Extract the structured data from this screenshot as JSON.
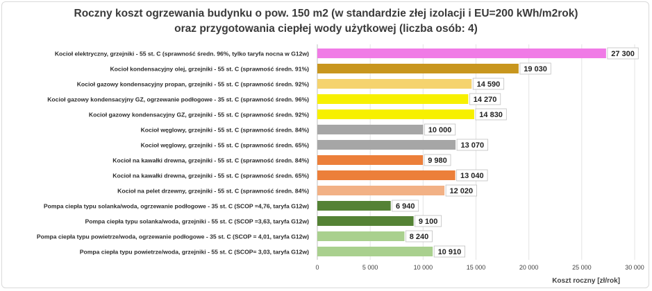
{
  "chart_data": {
    "type": "bar",
    "orientation": "horizontal",
    "title_line1": "Roczny koszt ogrzewania budynku  o pow. 150 m2 (w standardzie złej izolacji i EU=200 kWh/m2rok)",
    "title_line2": "oraz przygotowania ciepłej wody użytkowej (liczba osób: 4)",
    "xlabel": "Koszt roczny [zł/rok]",
    "ylabel": "",
    "xlim": [
      0,
      30000
    ],
    "xticks": [
      0,
      5000,
      10000,
      15000,
      20000,
      25000,
      30000
    ],
    "xtick_labels": [
      "0",
      "5 000",
      "10 000",
      "15 000",
      "20 000",
      "25 000",
      "30 000"
    ],
    "grid": "vertical",
    "categories": [
      "Kocioł  elektryczny,  grzejniki - 55 st. C  (sprawność średn. 96%, tylko taryfa nocna w G12w)",
      "Kocioł  kondensacyjny olej,  grzejniki - 55 st. C (sprawność średn. 91%)",
      "Kocioł gazowy kondensacyjny propan, grzejniki - 55 st. C (sprawność średn. 92%)",
      "Kocioł gazowy kondensacyjny GZ, ogrzewanie podłogowe - 35 st. C (sprawność średn. 96%)",
      "Kocioł gazowy kondensacyjny GZ, grzejniki - 55 st. C (sprawność średn. 92%)",
      "Kocioł węglowy,  grzejniki - 55 st. C (sprawność średn. 84%)",
      "Kocioł węglowy,  grzejniki - 55 st. C (sprawność średn. 65%)",
      "Kocioł na kawałki drewna, grzejniki - 55 st. C (sprawność średn. 84%)",
      "Kocioł na kawałki drewna, grzejniki - 55 st. C (sprawność średn. 65%)",
      "Kocioł na pelet drzewny, grzejniki - 55 st. C (sprawność średn. 84%)",
      "Pompa ciepła typu solanka/woda, ogrzewanie podłogowe - 35 st. C (SCOP =4,76, taryfa G12w)",
      "Pompa ciepła typu solanka/woda, grzejniki - 55 st. C (SCOP =3,63, taryfa G12w)",
      "Pompa ciepła typu powietrze/woda, ogrzewanie podłogowe - 35 st. C (SCOP = 4,01, taryfa G12w)",
      "Pompa ciepła typu powietrze/woda, grzejniki - 55 st. C (SCOP= 3,03, taryfa G12w)"
    ],
    "values": [
      27300,
      19030,
      14590,
      14270,
      14830,
      10000,
      13070,
      9980,
      13040,
      12020,
      6940,
      9100,
      8240,
      10910
    ],
    "value_labels": [
      "27 300",
      "19 030",
      "14 590",
      "14 270",
      "14 830",
      "10 000",
      "13 070",
      "9 980",
      "13 040",
      "12 020",
      "6 940",
      "9 100",
      "8 240",
      "10 910"
    ],
    "colors": [
      "#f07be6",
      "#c8961e",
      "#f5d36e",
      "#f7f000",
      "#f7f000",
      "#a6a6a6",
      "#a6a6a6",
      "#ec7f3a",
      "#ec7f3a",
      "#f2b185",
      "#548235",
      "#548235",
      "#a9d08e",
      "#a9d08e"
    ]
  }
}
